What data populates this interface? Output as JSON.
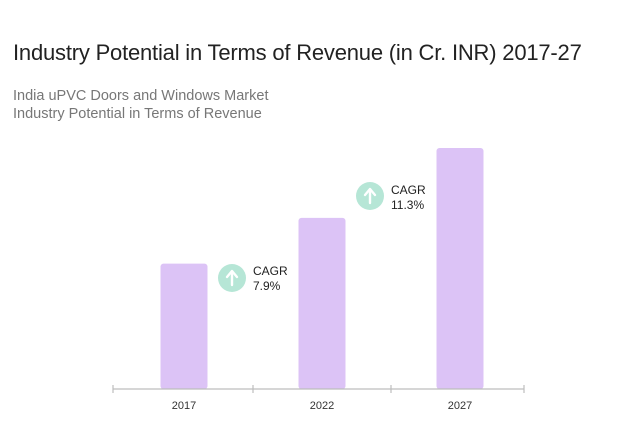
{
  "title": "Industry Potential in Terms of Revenue (in Cr. INR) 2017-27",
  "subtitle_line1": "India uPVC Doors and Windows Market",
  "subtitle_line2": "Industry Potential in Terms of Revenue",
  "colors": {
    "bar": "#dcc3f6",
    "axis": "#bdbdbd",
    "cagr_circle": "#b6e6d6",
    "cagr_arrow": "#ffffff"
  },
  "chart_data": {
    "type": "bar",
    "categories": [
      "2017",
      "2022",
      "2027"
    ],
    "values": [
      52,
      71,
      100
    ],
    "ylim": [
      0,
      100
    ],
    "grid": false,
    "annotations": [
      {
        "label": "CAGR",
        "value": "7.9%",
        "icon": "arrow-up-icon"
      },
      {
        "label": "CAGR",
        "value": "11.3%",
        "icon": "arrow-up-icon"
      }
    ]
  }
}
